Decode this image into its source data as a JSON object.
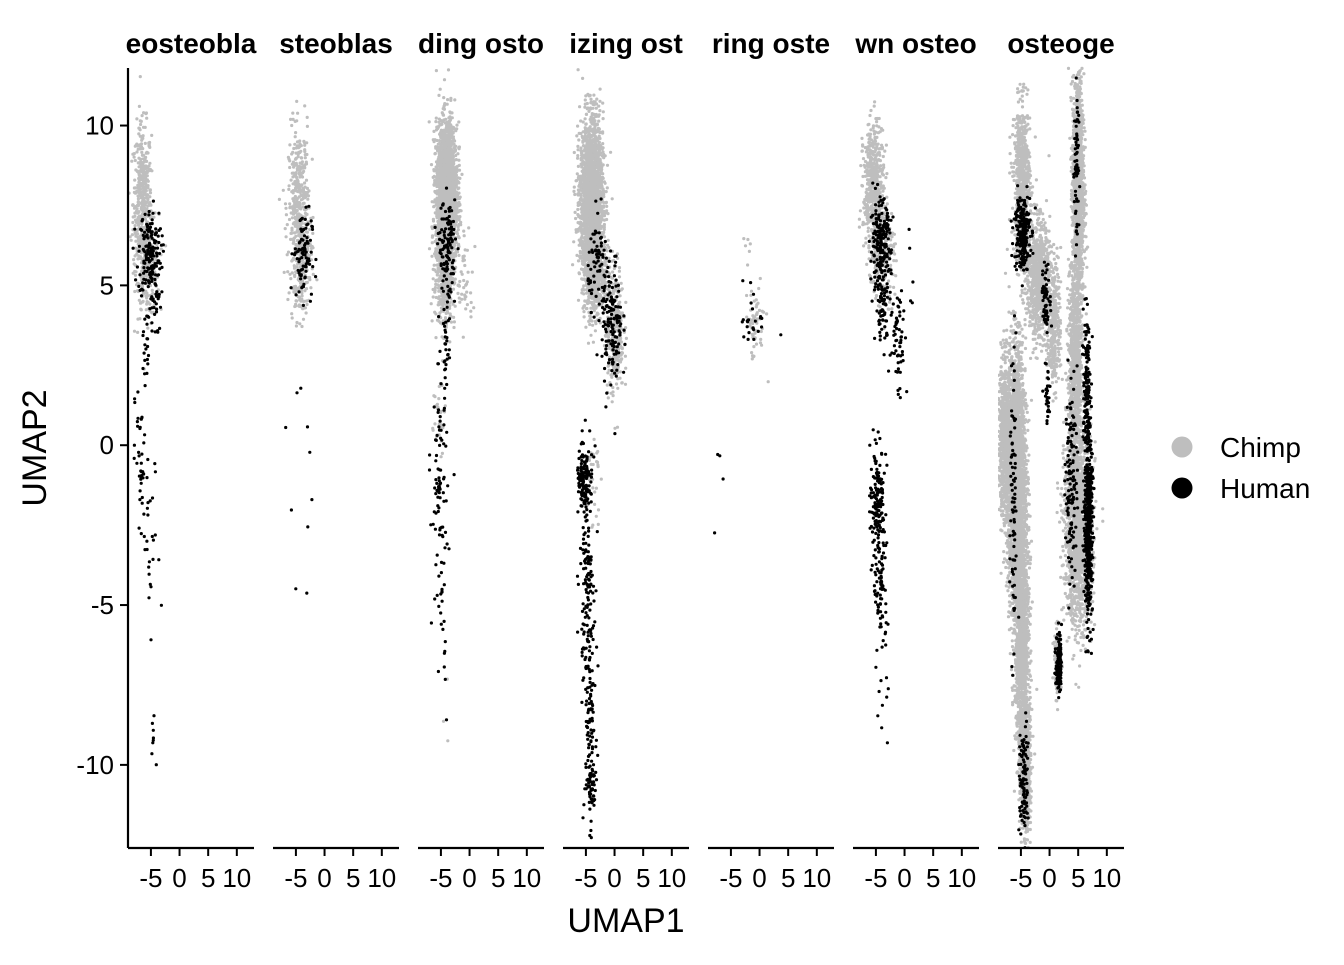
{
  "chart_data": {
    "type": "scatter",
    "title": "",
    "xlabel": "UMAP1",
    "ylabel": "UMAP2",
    "xlim": [
      -9,
      13
    ],
    "ylim": [
      -12.6,
      11.8
    ],
    "y_ticks": [
      10,
      5,
      0,
      -5,
      -10
    ],
    "y_tick_labels": [
      "10",
      "5",
      "0",
      "-5",
      "-10"
    ],
    "x_ticks": [
      -5,
      0,
      5,
      10
    ],
    "x_tick_labels": [
      "-5",
      "0",
      "5",
      "10"
    ],
    "grid": false,
    "legend_position": "right",
    "colors": {
      "Chimp": "#bebebe",
      "Human": "#000000"
    },
    "series": [
      {
        "name": "Chimp",
        "color": "#bebebe"
      },
      {
        "name": "Human",
        "color": "#000000"
      }
    ],
    "panels": [
      {
        "title": "eosteobla",
        "clusters": [
          {
            "s": "Chimp",
            "cx": -6.5,
            "cy": 7.6,
            "sx": 0.8,
            "sy": 1.2,
            "n": 420
          },
          {
            "s": "Chimp",
            "cx": -5.6,
            "cy": 5.6,
            "sx": 1.0,
            "sy": 0.8,
            "n": 200
          },
          {
            "s": "Human",
            "cx": -5.2,
            "cy": 6.0,
            "sx": 1.0,
            "sy": 0.7,
            "n": 170
          },
          {
            "s": "Human",
            "cx": -4.2,
            "cy": 4.3,
            "sx": 0.5,
            "sy": 0.5,
            "n": 25
          },
          {
            "s": "Human",
            "cx": -5.9,
            "cy": 3.2,
            "sx": 0.25,
            "sy": 0.6,
            "n": 18
          },
          {
            "s": "Human",
            "cx": -6.8,
            "cy": -0.6,
            "sx": 0.5,
            "sy": 1.4,
            "n": 40
          },
          {
            "s": "Human",
            "cx": -5.0,
            "cy": -3.5,
            "sx": 0.8,
            "sy": 1.6,
            "n": 26
          },
          {
            "s": "Human",
            "cx": -4.5,
            "cy": -9.2,
            "sx": 0.4,
            "sy": 0.7,
            "n": 8
          }
        ]
      },
      {
        "title": "steoblas",
        "clusters": [
          {
            "s": "Chimp",
            "cx": -4.5,
            "cy": 7.5,
            "sx": 0.9,
            "sy": 1.2,
            "n": 380
          },
          {
            "s": "Chimp",
            "cx": -4.0,
            "cy": 5.5,
            "sx": 0.9,
            "sy": 0.8,
            "n": 150
          },
          {
            "s": "Human",
            "cx": -3.8,
            "cy": 6.0,
            "sx": 0.8,
            "sy": 0.7,
            "n": 90
          },
          {
            "s": "Human",
            "cx": -5.0,
            "cy": -2.5,
            "sx": 1.5,
            "sy": 2.4,
            "n": 10
          }
        ]
      },
      {
        "title": "ding osto",
        "clusters": [
          {
            "s": "Chimp",
            "cx": -4.0,
            "cy": 7.8,
            "sx": 0.9,
            "sy": 1.1,
            "n": 2600
          },
          {
            "s": "Chimp",
            "cx": -4.4,
            "cy": 5.3,
            "sx": 0.9,
            "sy": 0.8,
            "n": 350
          },
          {
            "s": "Chimp",
            "cx": -0.8,
            "cy": 5.0,
            "sx": 0.7,
            "sy": 0.7,
            "n": 40
          },
          {
            "s": "Chimp",
            "cx": -5.3,
            "cy": 0.8,
            "sx": 0.7,
            "sy": 0.8,
            "n": 30
          },
          {
            "s": "Human",
            "cx": -3.9,
            "cy": 6.2,
            "sx": 0.7,
            "sy": 0.7,
            "n": 120
          },
          {
            "s": "Human",
            "cx": -4.0,
            "cy": 3.2,
            "sx": 0.3,
            "sy": 0.8,
            "n": 30
          },
          {
            "s": "Human",
            "cx": -5.2,
            "cy": -1.6,
            "sx": 0.7,
            "sy": 2.0,
            "n": 90
          },
          {
            "s": "Human",
            "cx": -4.6,
            "cy": -6.5,
            "sx": 0.5,
            "sy": 2.2,
            "n": 14
          },
          {
            "s": "Chimp",
            "cx": -3.8,
            "cy": -9.0,
            "sx": 0.5,
            "sy": 0.8,
            "n": 3
          }
        ]
      },
      {
        "title": "izing ost",
        "clusters": [
          {
            "s": "Chimp",
            "cx": -4.0,
            "cy": 7.6,
            "sx": 1.0,
            "sy": 1.3,
            "n": 2200
          },
          {
            "s": "Chimp",
            "cx": -3.5,
            "cy": 5.6,
            "sx": 1.0,
            "sy": 0.8,
            "n": 500
          },
          {
            "s": "Chimp",
            "cx": 0.0,
            "cy": 3.6,
            "sx": 0.8,
            "sy": 1.0,
            "n": 300
          },
          {
            "s": "Human",
            "cx": -0.5,
            "cy": 3.8,
            "sx": 0.9,
            "sy": 1.1,
            "n": 150
          },
          {
            "s": "Human",
            "cx": -3.0,
            "cy": 5.8,
            "sx": 0.8,
            "sy": 0.7,
            "n": 60
          },
          {
            "s": "Human",
            "cx": -5.4,
            "cy": -1.2,
            "sx": 0.6,
            "sy": 0.5,
            "n": 110
          },
          {
            "s": "Human",
            "cx": -4.8,
            "cy": -3.8,
            "sx": 0.6,
            "sy": 1.8,
            "n": 150
          },
          {
            "s": "Human",
            "cx": -4.3,
            "cy": -8.5,
            "sx": 0.5,
            "sy": 1.6,
            "n": 90
          },
          {
            "s": "Human",
            "cx": -4.0,
            "cy": -10.8,
            "sx": 0.4,
            "sy": 0.4,
            "n": 50
          },
          {
            "s": "Chimp",
            "cx": -3.8,
            "cy": -1.0,
            "sx": 0.6,
            "sy": 0.8,
            "n": 30
          }
        ]
      },
      {
        "title": "ring oste",
        "clusters": [
          {
            "s": "Chimp",
            "cx": -0.8,
            "cy": 3.8,
            "sx": 0.9,
            "sy": 0.6,
            "n": 55
          },
          {
            "s": "Human",
            "cx": -1.0,
            "cy": 4.0,
            "sx": 1.1,
            "sy": 0.6,
            "n": 25
          },
          {
            "s": "Chimp",
            "cx": -2.2,
            "cy": 6.1,
            "sx": 0.5,
            "sy": 0.3,
            "n": 6
          },
          {
            "s": "Human",
            "cx": -6.5,
            "cy": -0.6,
            "sx": 0.6,
            "sy": 0.8,
            "n": 4
          }
        ]
      },
      {
        "title": "wn osteo",
        "clusters": [
          {
            "s": "Chimp",
            "cx": -5.4,
            "cy": 8.0,
            "sx": 0.9,
            "sy": 1.0,
            "n": 500
          },
          {
            "s": "Chimp",
            "cx": -3.8,
            "cy": 6.0,
            "sx": 1.0,
            "sy": 0.8,
            "n": 250
          },
          {
            "s": "Human",
            "cx": -4.2,
            "cy": 6.2,
            "sx": 0.9,
            "sy": 0.7,
            "n": 200
          },
          {
            "s": "Human",
            "cx": -3.8,
            "cy": 4.4,
            "sx": 0.6,
            "sy": 0.6,
            "n": 60
          },
          {
            "s": "Human",
            "cx": -1.0,
            "cy": 3.3,
            "sx": 0.7,
            "sy": 0.9,
            "n": 60
          },
          {
            "s": "Human",
            "cx": -4.8,
            "cy": -1.5,
            "sx": 0.6,
            "sy": 0.7,
            "n": 110
          },
          {
            "s": "Human",
            "cx": -4.2,
            "cy": -4.0,
            "sx": 0.6,
            "sy": 1.6,
            "n": 120
          },
          {
            "s": "Human",
            "cx": -3.5,
            "cy": -8.4,
            "sx": 0.4,
            "sy": 1.0,
            "n": 5
          },
          {
            "s": "Human",
            "cx": 1.5,
            "cy": 5.5,
            "sx": 0.8,
            "sy": 1.0,
            "n": 5
          }
        ]
      },
      {
        "title": "osteoge",
        "clusters": [
          {
            "s": "Chimp",
            "cx": -7.8,
            "cy": 0.2,
            "sx": 0.6,
            "sy": 1.2,
            "n": 700
          },
          {
            "s": "Chimp",
            "cx": -5.8,
            "cy": -1.0,
            "sx": 0.8,
            "sy": 2.0,
            "n": 2600
          },
          {
            "s": "Chimp",
            "cx": -4.8,
            "cy": -6.0,
            "sx": 0.6,
            "sy": 1.8,
            "n": 1400
          },
          {
            "s": "Chimp",
            "cx": -4.2,
            "cy": -10.0,
            "sx": 0.45,
            "sy": 1.0,
            "n": 700
          },
          {
            "s": "Chimp",
            "cx": -4.8,
            "cy": 8.2,
            "sx": 0.7,
            "sy": 1.2,
            "n": 700
          },
          {
            "s": "Chimp",
            "cx": -2.0,
            "cy": 5.2,
            "sx": 1.0,
            "sy": 0.9,
            "n": 800
          },
          {
            "s": "Chimp",
            "cx": 0.8,
            "cy": 3.8,
            "sx": 0.6,
            "sy": 1.0,
            "n": 300
          },
          {
            "s": "Chimp",
            "cx": 5.0,
            "cy": 8.0,
            "sx": 0.5,
            "sy": 1.8,
            "n": 1300
          },
          {
            "s": "Chimp",
            "cx": 4.5,
            "cy": 2.5,
            "sx": 0.6,
            "sy": 1.5,
            "n": 900
          },
          {
            "s": "Chimp",
            "cx": 5.0,
            "cy": -2.5,
            "sx": 1.2,
            "sy": 1.5,
            "n": 1600
          },
          {
            "s": "Chimp",
            "cx": 1.5,
            "cy": -6.8,
            "sx": 0.3,
            "sy": 0.5,
            "n": 150
          },
          {
            "s": "Human",
            "cx": -4.8,
            "cy": 6.7,
            "sx": 0.7,
            "sy": 0.6,
            "n": 220
          },
          {
            "s": "Human",
            "cx": 6.8,
            "cy": -2.6,
            "sx": 0.35,
            "sy": 1.4,
            "n": 500
          },
          {
            "s": "Human",
            "cx": 6.5,
            "cy": 1.5,
            "sx": 0.3,
            "sy": 1.2,
            "n": 160
          },
          {
            "s": "Human",
            "cx": 3.8,
            "cy": -1.0,
            "sx": 0.5,
            "sy": 1.6,
            "n": 120
          },
          {
            "s": "Human",
            "cx": 1.6,
            "cy": -6.8,
            "sx": 0.25,
            "sy": 0.5,
            "n": 110
          },
          {
            "s": "Human",
            "cx": -0.6,
            "cy": 4.6,
            "sx": 0.4,
            "sy": 0.5,
            "n": 60
          },
          {
            "s": "Human",
            "cx": -0.3,
            "cy": 1.6,
            "sx": 0.3,
            "sy": 0.5,
            "n": 30
          },
          {
            "s": "Human",
            "cx": -4.5,
            "cy": -10.5,
            "sx": 0.4,
            "sy": 0.9,
            "n": 100
          },
          {
            "s": "Human",
            "cx": -6.3,
            "cy": -2.0,
            "sx": 0.3,
            "sy": 2.5,
            "n": 80
          },
          {
            "s": "Human",
            "cx": 4.7,
            "cy": 8.5,
            "sx": 0.2,
            "sy": 1.5,
            "n": 60
          }
        ]
      }
    ]
  }
}
